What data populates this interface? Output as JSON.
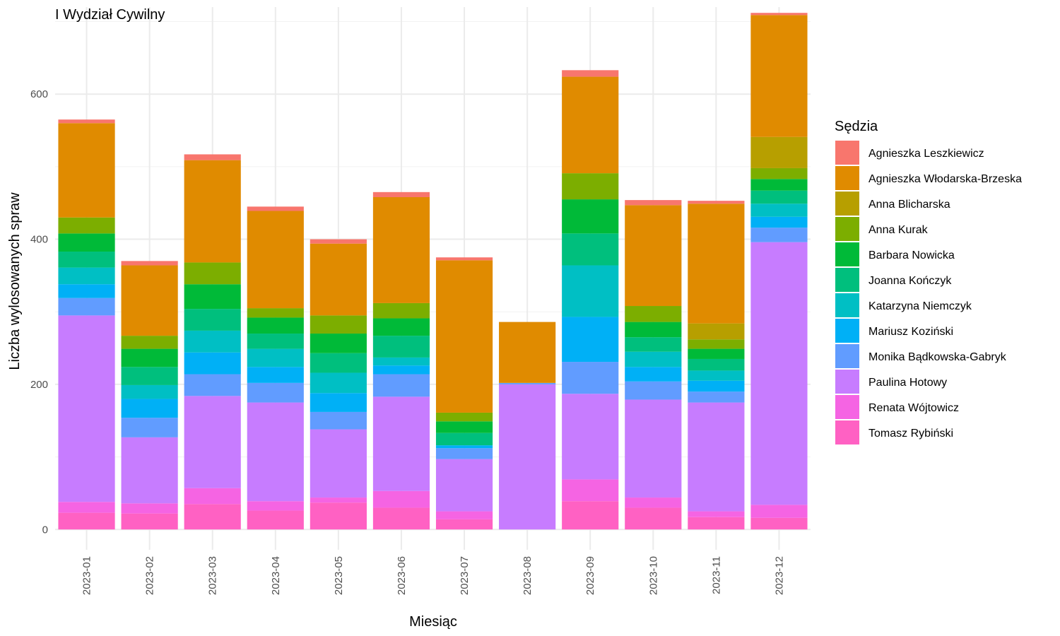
{
  "chart_data": {
    "type": "bar",
    "stacked": true,
    "title": "I Wydział Cywilny",
    "xlabel": "Miesiąc",
    "ylabel": "Liczba wylosowanych spraw",
    "ylim": [
      -28,
      720
    ],
    "y_ticks": [
      0,
      200,
      400,
      600
    ],
    "grid": true,
    "legend_title": "Sędzia",
    "legend_position": "right",
    "categories": [
      "2023-01",
      "2023-02",
      "2023-03",
      "2023-04",
      "2023-05",
      "2023-06",
      "2023-07",
      "2023-08",
      "2023-09",
      "2023-10",
      "2023-11",
      "2023-12"
    ],
    "series": [
      {
        "name": "Tomasz Rybiński",
        "color": "#FF61C3",
        "values": [
          23,
          22,
          35,
          26,
          37,
          30,
          14,
          0,
          39,
          30,
          17,
          16
        ]
      },
      {
        "name": "Renata Wójtowicz",
        "color": "#F564E3",
        "values": [
          15,
          14,
          22,
          13,
          7,
          23,
          11,
          0,
          30,
          14,
          8,
          18
        ]
      },
      {
        "name": "Paulina Hotowy",
        "color": "#C77CFF",
        "values": [
          257,
          91,
          127,
          136,
          94,
          130,
          72,
          200,
          118,
          135,
          150,
          362
        ]
      },
      {
        "name": "Monika Bądkowska-Gabryk",
        "color": "#619CFF",
        "values": [
          24,
          27,
          30,
          27,
          24,
          31,
          15,
          2,
          44,
          25,
          15,
          20
        ]
      },
      {
        "name": "Mariusz Koziński",
        "color": "#00B0F6",
        "values": [
          19,
          26,
          30,
          22,
          26,
          12,
          4,
          0,
          62,
          20,
          15,
          15
        ]
      },
      {
        "name": "Katarzyna Niemczyk",
        "color": "#00BFC4",
        "values": [
          23,
          19,
          30,
          25,
          28,
          11,
          0,
          0,
          71,
          21,
          14,
          18
        ]
      },
      {
        "name": "Joanna Kończyk",
        "color": "#00BF7D",
        "values": [
          22,
          25,
          30,
          21,
          27,
          30,
          17,
          0,
          44,
          20,
          16,
          18
        ]
      },
      {
        "name": "Barbara Nowicka",
        "color": "#00BA38",
        "values": [
          25,
          25,
          34,
          22,
          27,
          24,
          16,
          0,
          47,
          21,
          14,
          16
        ]
      },
      {
        "name": "Anna Kurak",
        "color": "#7CAE00",
        "values": [
          22,
          18,
          30,
          13,
          25,
          21,
          12,
          0,
          36,
          22,
          13,
          15
        ]
      },
      {
        "name": "Anna Blicharska",
        "color": "#B79F00",
        "values": [
          0,
          0,
          0,
          0,
          0,
          0,
          0,
          0,
          0,
          0,
          22,
          43
        ]
      },
      {
        "name": "Agnieszka Włodarska-Brzeska",
        "color": "#E08B00",
        "values": [
          130,
          97,
          141,
          134,
          99,
          146,
          210,
          84,
          133,
          139,
          165,
          168
        ]
      },
      {
        "name": "Agnieszka Leszkiewicz",
        "color": "#F8766D",
        "values": [
          5,
          6,
          8,
          6,
          6,
          7,
          4,
          0,
          9,
          7,
          4,
          3
        ]
      }
    ]
  }
}
